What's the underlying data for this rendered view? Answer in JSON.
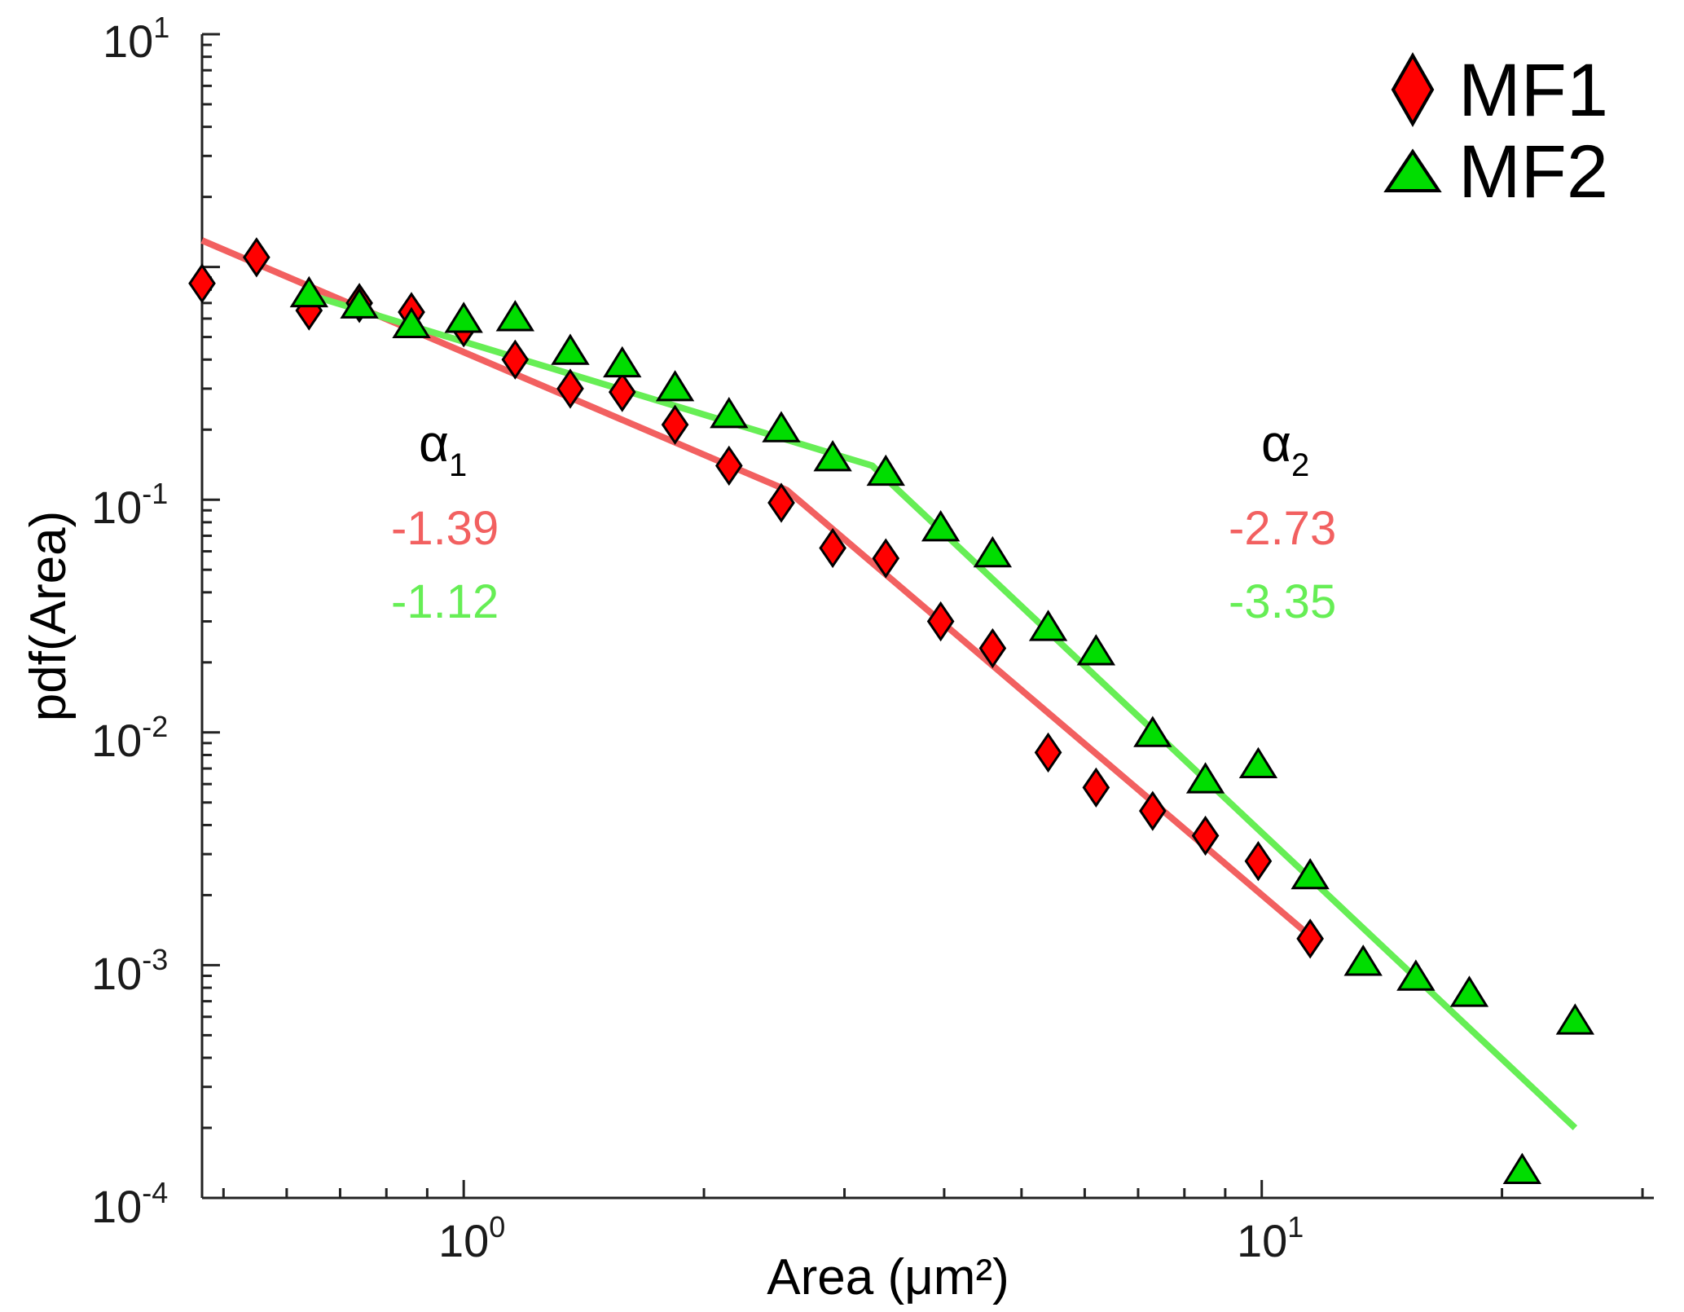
{
  "chart_data": {
    "type": "scatter",
    "title": "",
    "xlabel": "Area (μm²)",
    "ylabel": "pdf(Area)",
    "xscale": "log",
    "yscale": "log",
    "xlim": [
      0.47,
      31
    ],
    "ylim": [
      0.0001,
      10
    ],
    "x_ticks": [
      {
        "value": 1,
        "base": "10",
        "exp": "0"
      },
      {
        "value": 10,
        "base": "10",
        "exp": "1"
      }
    ],
    "y_ticks": [
      {
        "value": 10,
        "base": "10",
        "exp": "1"
      },
      {
        "value": 0.1,
        "base": "10",
        "exp": "-1"
      },
      {
        "value": 0.01,
        "base": "10",
        "exp": "-2"
      },
      {
        "value": 0.001,
        "base": "10",
        "exp": "-3"
      },
      {
        "value": 0.0001,
        "base": "10",
        "exp": "-4"
      }
    ],
    "series": [
      {
        "name": "MF1",
        "marker": "diamond",
        "color": "#ff0000",
        "fit_color": "#f26060",
        "points": [
          [
            0.47,
            0.85
          ],
          [
            0.55,
            1.1
          ],
          [
            0.64,
            0.65
          ],
          [
            0.74,
            0.7
          ],
          [
            0.86,
            0.64
          ],
          [
            1.0,
            0.55
          ],
          [
            1.16,
            0.4
          ],
          [
            1.36,
            0.3
          ],
          [
            1.58,
            0.29
          ],
          [
            1.84,
            0.21
          ],
          [
            2.15,
            0.14
          ],
          [
            2.5,
            0.097
          ],
          [
            2.9,
            0.062
          ],
          [
            3.38,
            0.056
          ],
          [
            3.96,
            0.03
          ],
          [
            4.6,
            0.023
          ],
          [
            5.4,
            0.0082
          ],
          [
            6.2,
            0.0058
          ],
          [
            7.3,
            0.0046
          ],
          [
            8.5,
            0.0036
          ],
          [
            9.9,
            0.0028
          ],
          [
            11.5,
            0.0013
          ]
        ],
        "fit_line": [
          [
            0.47,
            1.3
          ],
          [
            2.54,
            0.11
          ],
          [
            11.6,
            0.0013
          ]
        ],
        "alpha1": "-1.39",
        "alpha2": "-2.73"
      },
      {
        "name": "MF2",
        "marker": "triangle",
        "color": "#00dd00",
        "fit_color": "#66ee55",
        "points": [
          [
            0.64,
            0.76
          ],
          [
            0.74,
            0.68
          ],
          [
            0.86,
            0.56
          ],
          [
            1.0,
            0.59
          ],
          [
            1.16,
            0.6
          ],
          [
            1.36,
            0.43
          ],
          [
            1.58,
            0.38
          ],
          [
            1.84,
            0.3
          ],
          [
            2.15,
            0.23
          ],
          [
            2.5,
            0.2
          ],
          [
            2.9,
            0.15
          ],
          [
            3.38,
            0.13
          ],
          [
            3.96,
            0.075
          ],
          [
            4.6,
            0.058
          ],
          [
            5.4,
            0.028
          ],
          [
            6.2,
            0.022
          ],
          [
            7.3,
            0.0098
          ],
          [
            8.5,
            0.0062
          ],
          [
            9.9,
            0.0072
          ],
          [
            11.5,
            0.0024
          ],
          [
            13.4,
            0.00102
          ],
          [
            15.6,
            0.00088
          ],
          [
            18.2,
            0.00075
          ],
          [
            21.2,
            0.00013
          ],
          [
            24.7,
            0.00057
          ]
        ],
        "fit_line": [
          [
            0.64,
            0.76
          ],
          [
            3.25,
            0.14
          ],
          [
            24.7,
            0.0002
          ]
        ],
        "alpha1": "-1.12",
        "alpha2": "-3.35"
      }
    ],
    "annotations": {
      "alpha1_symbol": "α",
      "alpha1_sub": "1",
      "alpha2_symbol": "α",
      "alpha2_sub": "2"
    },
    "legend": {
      "position": "top-right",
      "entries": [
        "MF1",
        "MF2"
      ]
    }
  }
}
